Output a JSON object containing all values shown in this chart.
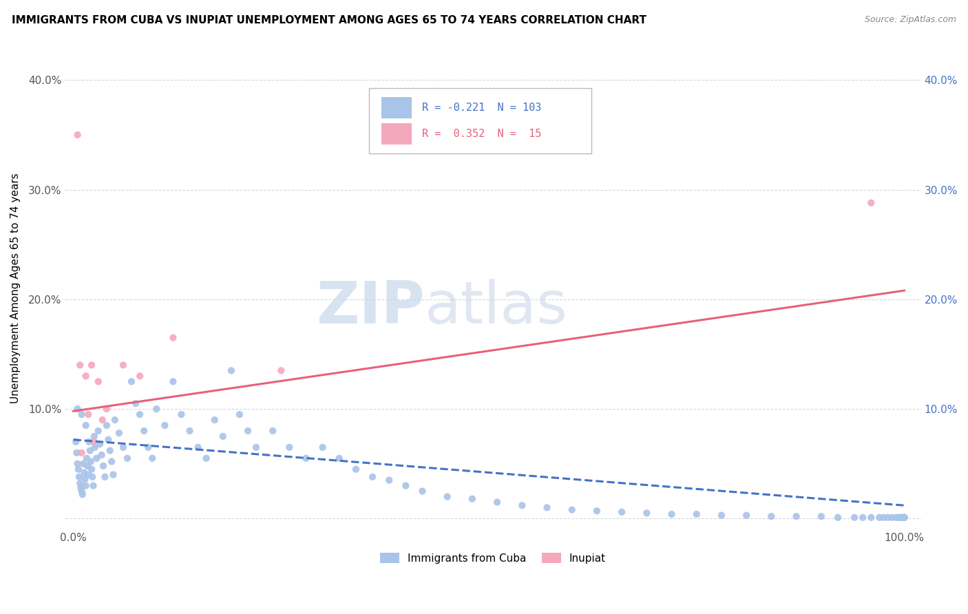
{
  "title": "IMMIGRANTS FROM CUBA VS INUPIAT UNEMPLOYMENT AMONG AGES 65 TO 74 YEARS CORRELATION CHART",
  "source": "Source: ZipAtlas.com",
  "ylabel": "Unemployment Among Ages 65 to 74 years",
  "xlim": [
    -0.01,
    1.02
  ],
  "ylim": [
    -0.01,
    0.43
  ],
  "x_ticks": [
    0.0,
    1.0
  ],
  "x_tick_labels": [
    "0.0%",
    "100.0%"
  ],
  "y_ticks": [
    0.0,
    0.1,
    0.2,
    0.3,
    0.4
  ],
  "y_tick_labels": [
    "",
    "10.0%",
    "20.0%",
    "30.0%",
    "40.0%"
  ],
  "cuba_color": "#a8c4e8",
  "inupiat_color": "#f4a8bc",
  "cuba_line_color": "#4472c4",
  "inupiat_line_color": "#e8607a",
  "watermark_zip": "ZIP",
  "watermark_atlas": "atlas",
  "background_color": "#ffffff",
  "grid_color": "#d8d8d8",
  "cuba_trend_x0": 0.0,
  "cuba_trend_x1": 1.0,
  "cuba_trend_y0": 0.072,
  "cuba_trend_y1": 0.012,
  "inupiat_trend_x0": 0.0,
  "inupiat_trend_x1": 1.0,
  "inupiat_trend_y0": 0.098,
  "inupiat_trend_y1": 0.208,
  "cuba_scatter_x": [
    0.003,
    0.004,
    0.005,
    0.006,
    0.007,
    0.008,
    0.009,
    0.01,
    0.011,
    0.012,
    0.013,
    0.014,
    0.015,
    0.016,
    0.017,
    0.018,
    0.019,
    0.02,
    0.021,
    0.022,
    0.023,
    0.024,
    0.025,
    0.026,
    0.028,
    0.03,
    0.032,
    0.034,
    0.036,
    0.038,
    0.04,
    0.042,
    0.044,
    0.046,
    0.048,
    0.05,
    0.055,
    0.06,
    0.065,
    0.07,
    0.075,
    0.08,
    0.085,
    0.09,
    0.095,
    0.1,
    0.11,
    0.12,
    0.13,
    0.14,
    0.15,
    0.16,
    0.17,
    0.18,
    0.19,
    0.2,
    0.21,
    0.22,
    0.24,
    0.26,
    0.28,
    0.3,
    0.32,
    0.34,
    0.36,
    0.38,
    0.4,
    0.42,
    0.45,
    0.48,
    0.51,
    0.54,
    0.57,
    0.6,
    0.63,
    0.66,
    0.69,
    0.72,
    0.75,
    0.78,
    0.81,
    0.84,
    0.87,
    0.9,
    0.92,
    0.94,
    0.95,
    0.96,
    0.97,
    0.975,
    0.98,
    0.985,
    0.99,
    0.993,
    0.996,
    0.998,
    0.999,
    1.0,
    1.0,
    1.0,
    0.005,
    0.01,
    0.015
  ],
  "cuba_scatter_y": [
    0.07,
    0.06,
    0.05,
    0.045,
    0.038,
    0.032,
    0.028,
    0.025,
    0.022,
    0.05,
    0.042,
    0.036,
    0.03,
    0.055,
    0.048,
    0.04,
    0.07,
    0.062,
    0.052,
    0.045,
    0.038,
    0.03,
    0.075,
    0.065,
    0.055,
    0.08,
    0.068,
    0.058,
    0.048,
    0.038,
    0.085,
    0.072,
    0.062,
    0.052,
    0.04,
    0.09,
    0.078,
    0.065,
    0.055,
    0.125,
    0.105,
    0.095,
    0.08,
    0.065,
    0.055,
    0.1,
    0.085,
    0.125,
    0.095,
    0.08,
    0.065,
    0.055,
    0.09,
    0.075,
    0.135,
    0.095,
    0.08,
    0.065,
    0.08,
    0.065,
    0.055,
    0.065,
    0.055,
    0.045,
    0.038,
    0.035,
    0.03,
    0.025,
    0.02,
    0.018,
    0.015,
    0.012,
    0.01,
    0.008,
    0.007,
    0.006,
    0.005,
    0.004,
    0.004,
    0.003,
    0.003,
    0.002,
    0.002,
    0.002,
    0.001,
    0.001,
    0.001,
    0.001,
    0.001,
    0.001,
    0.001,
    0.001,
    0.001,
    0.001,
    0.001,
    0.001,
    0.001,
    0.001,
    0.001,
    0.001,
    0.1,
    0.095,
    0.085
  ],
  "inupiat_scatter_x": [
    0.005,
    0.008,
    0.01,
    0.015,
    0.018,
    0.022,
    0.025,
    0.03,
    0.035,
    0.04,
    0.06,
    0.08,
    0.12,
    0.25,
    0.96
  ],
  "inupiat_scatter_y": [
    0.35,
    0.14,
    0.06,
    0.13,
    0.095,
    0.14,
    0.07,
    0.125,
    0.09,
    0.1,
    0.14,
    0.13,
    0.165,
    0.135,
    0.288
  ]
}
